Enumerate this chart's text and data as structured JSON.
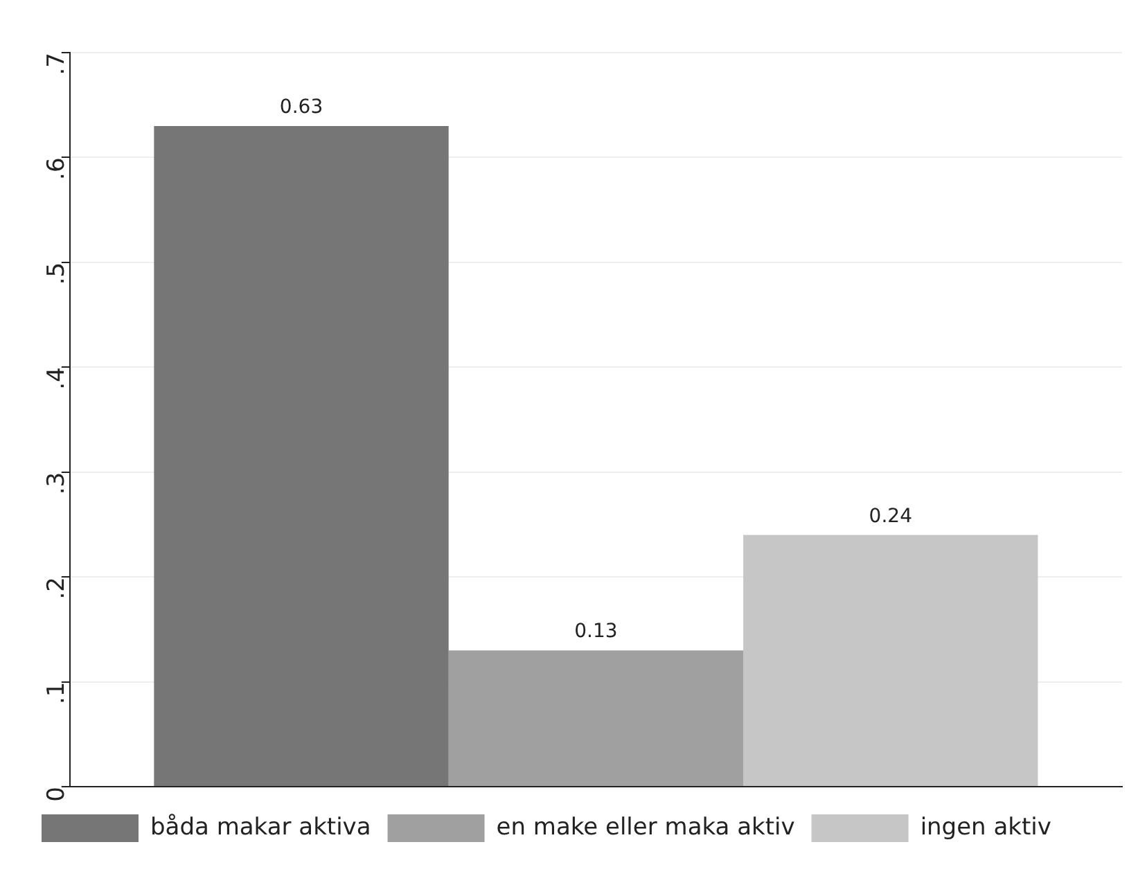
{
  "chart_data": {
    "type": "bar",
    "categories": [
      null
    ],
    "series": [
      {
        "name": "båda makar aktiva",
        "color": "#767676",
        "values": [
          0.63
        ]
      },
      {
        "name": "en make eller maka aktiv",
        "color": "#a0a0a0",
        "values": [
          0.13
        ]
      },
      {
        "name": "ingen aktiv",
        "color": "#c6c6c6",
        "values": [
          0.24
        ]
      }
    ],
    "ylim": [
      0,
      0.7
    ],
    "yticks": [
      {
        "value": 0,
        "label": "0"
      },
      {
        "value": 0.1,
        "label": ".1"
      },
      {
        "value": 0.2,
        "label": ".2"
      },
      {
        "value": 0.3,
        "label": ".3"
      },
      {
        "value": 0.4,
        "label": ".4"
      },
      {
        "value": 0.5,
        "label": ".5"
      },
      {
        "value": 0.6,
        "label": ".6"
      },
      {
        "value": 0.7,
        "label": ".7"
      }
    ],
    "grid": "y",
    "legend": "bottom",
    "data_labels": true
  }
}
